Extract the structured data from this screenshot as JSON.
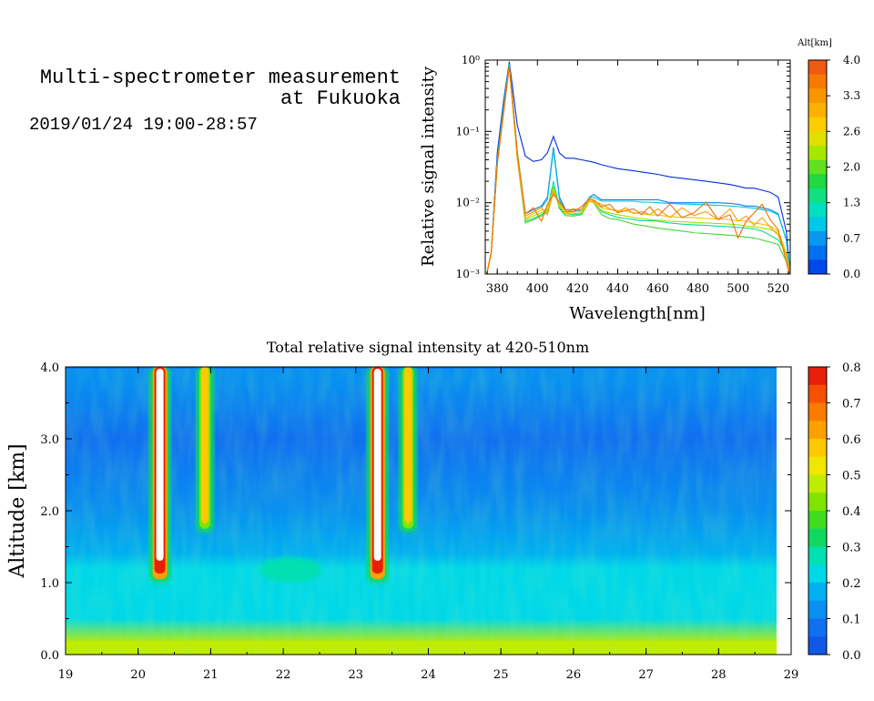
{
  "header": {
    "title_line1": "Multi-spectrometer measurement",
    "title_line2": "at Fukuoka",
    "date_range": "2019/01/24 19:00-28:57"
  },
  "chart_data": [
    {
      "type": "line",
      "ylabel": "Relative signal intensity",
      "xlabel": "Wavelength[nm]",
      "xlim": [
        374,
        526
      ],
      "ylim": [
        0.001,
        1
      ],
      "yscale": "log",
      "x_ticks": [
        380,
        400,
        420,
        440,
        460,
        480,
        500,
        520
      ],
      "y_ticks": [
        {
          "label": "10⁰",
          "value": 1
        },
        {
          "label": "10⁻¹",
          "value": 0.1
        },
        {
          "label": "10⁻²",
          "value": 0.01
        },
        {
          "label": "10⁻³",
          "value": 0.001
        }
      ],
      "colorbar": {
        "title": "Alt[km]",
        "ticks": [
          "4.0",
          "3.3",
          "2.6",
          "2.0",
          "1.3",
          "0.7",
          "0.0"
        ],
        "colors": [
          "#f05a10",
          "#f77a00",
          "#fa9600",
          "#ffb000",
          "#ffcc00",
          "#e0e000",
          "#a8e800",
          "#60e020",
          "#20d840",
          "#10e080",
          "#00e0c0",
          "#00c8e8",
          "#0898f0",
          "#0070f0",
          "#0048e8"
        ]
      },
      "x": [
        374,
        377,
        380,
        383,
        386,
        390,
        394,
        398,
        402,
        405,
        408,
        411,
        414,
        418,
        422,
        426,
        428,
        432,
        436,
        440,
        444,
        448,
        452,
        456,
        460,
        466,
        472,
        478,
        484,
        490,
        496,
        500,
        504,
        508,
        512,
        516,
        520,
        524,
        526
      ],
      "series": [
        {
          "color": "#0030e0",
          "values": [
            0.0008,
            0.002,
            0.05,
            0.25,
            0.95,
            0.12,
            0.045,
            0.038,
            0.04,
            0.05,
            0.085,
            0.05,
            0.042,
            0.042,
            0.04,
            0.038,
            0.037,
            0.034,
            0.032,
            0.03,
            0.029,
            0.028,
            0.027,
            0.026,
            0.025,
            0.023,
            0.022,
            0.021,
            0.02,
            0.019,
            0.018,
            0.017,
            0.016,
            0.016,
            0.015,
            0.014,
            0.012,
            0.004,
            0.001
          ]
        },
        {
          "color": "#0880f0",
          "values": [
            0.0008,
            0.002,
            0.04,
            0.22,
            0.9,
            0.05,
            0.007,
            0.008,
            0.009,
            0.012,
            0.06,
            0.012,
            0.008,
            0.008,
            0.008,
            0.012,
            0.013,
            0.011,
            0.011,
            0.011,
            0.011,
            0.011,
            0.011,
            0.011,
            0.011,
            0.01,
            0.01,
            0.01,
            0.01,
            0.01,
            0.0098,
            0.0095,
            0.009,
            0.009,
            0.0085,
            0.008,
            0.007,
            0.003,
            0.001
          ]
        },
        {
          "color": "#00c0e0",
          "values": [
            0.0008,
            0.002,
            0.04,
            0.2,
            0.88,
            0.05,
            0.0065,
            0.0075,
            0.0085,
            0.011,
            0.055,
            0.011,
            0.0075,
            0.0075,
            0.0078,
            0.012,
            0.012,
            0.0105,
            0.0105,
            0.0105,
            0.0105,
            0.0105,
            0.0102,
            0.0102,
            0.01,
            0.0098,
            0.0096,
            0.0095,
            0.0093,
            0.0092,
            0.009,
            0.0088,
            0.0086,
            0.0084,
            0.008,
            0.0076,
            0.0068,
            0.003,
            0.001
          ]
        },
        {
          "color": "#10d890",
          "values": [
            0.0008,
            0.002,
            0.035,
            0.18,
            0.85,
            0.04,
            0.0055,
            0.006,
            0.0068,
            0.008,
            0.02,
            0.0085,
            0.007,
            0.0068,
            0.007,
            0.011,
            0.0105,
            0.0075,
            0.0068,
            0.0062,
            0.006,
            0.0058,
            0.0056,
            0.0056,
            0.0055,
            0.0052,
            0.005,
            0.0049,
            0.0048,
            0.0047,
            0.0046,
            0.0045,
            0.0044,
            0.0043,
            0.004,
            0.0035,
            0.003,
            0.002,
            0.001
          ]
        },
        {
          "color": "#40d830",
          "values": [
            0.0008,
            0.002,
            0.035,
            0.17,
            0.83,
            0.04,
            0.0052,
            0.0058,
            0.0065,
            0.0075,
            0.017,
            0.0082,
            0.0066,
            0.0065,
            0.0068,
            0.0105,
            0.01,
            0.0068,
            0.006,
            0.0058,
            0.0054,
            0.005,
            0.0048,
            0.0046,
            0.0044,
            0.0042,
            0.004,
            0.0038,
            0.0037,
            0.0036,
            0.0035,
            0.0034,
            0.0033,
            0.0032,
            0.003,
            0.0028,
            0.0026,
            0.0015,
            0.0009
          ]
        },
        {
          "color": "#a0e000",
          "values": [
            0.0008,
            0.002,
            0.035,
            0.17,
            0.82,
            0.04,
            0.0058,
            0.0065,
            0.0072,
            0.008,
            0.016,
            0.009,
            0.007,
            0.007,
            0.0072,
            0.0105,
            0.01,
            0.0078,
            0.0072,
            0.0068,
            0.0065,
            0.0062,
            0.006,
            0.0058,
            0.0057,
            0.0055,
            0.0054,
            0.0053,
            0.0052,
            0.0051,
            0.005,
            0.0049,
            0.0047,
            0.0046,
            0.0044,
            0.0042,
            0.0038,
            0.002,
            0.001
          ]
        },
        {
          "color": "#ffc000",
          "values": [
            0.0008,
            0.002,
            0.035,
            0.17,
            0.82,
            0.04,
            0.006,
            0.007,
            0.0078,
            0.0082,
            0.015,
            0.0095,
            0.0072,
            0.0074,
            0.0076,
            0.0105,
            0.0102,
            0.0085,
            0.008,
            0.0078,
            0.0076,
            0.0072,
            0.007,
            0.0068,
            0.0067,
            0.0064,
            0.0062,
            0.0062,
            0.006,
            0.0059,
            0.0058,
            0.0056,
            0.0055,
            0.0052,
            0.005,
            0.0047,
            0.004,
            0.002,
            0.001
          ]
        },
        {
          "color": "#f7a000",
          "values": [
            0.0008,
            0.002,
            0.035,
            0.17,
            0.82,
            0.045,
            0.0065,
            0.0075,
            0.0085,
            0.0068,
            0.014,
            0.01,
            0.0078,
            0.0082,
            0.008,
            0.011,
            0.0105,
            0.0095,
            0.0082,
            0.0075,
            0.0085,
            0.007,
            0.0075,
            0.0068,
            0.0082,
            0.0062,
            0.0085,
            0.0066,
            0.0075,
            0.0058,
            0.0082,
            0.0055,
            0.0065,
            0.0048,
            0.0062,
            0.0045,
            0.0035,
            0.0018,
            0.0009
          ]
        },
        {
          "color": "#f07000",
          "values": [
            0.0008,
            0.002,
            0.035,
            0.17,
            0.82,
            0.05,
            0.007,
            0.0085,
            0.0055,
            0.0095,
            0.013,
            0.0102,
            0.008,
            0.0075,
            0.0088,
            0.0115,
            0.011,
            0.0088,
            0.0095,
            0.0072,
            0.0078,
            0.0082,
            0.0068,
            0.0088,
            0.0065,
            0.0095,
            0.0062,
            0.0072,
            0.0102,
            0.0058,
            0.0068,
            0.0032,
            0.0055,
            0.0072,
            0.0095,
            0.0058,
            0.0042,
            0.0015,
            0.0009
          ]
        }
      ]
    },
    {
      "type": "heatmap",
      "title": "Total relative signal intensity at 420-510nm",
      "ylabel": "Altitude [km]",
      "xlabel": "",
      "xlim": [
        19,
        29
      ],
      "ylim": [
        0.0,
        4.0
      ],
      "x_ticks": [
        "19",
        "20",
        "21",
        "22",
        "23",
        "24",
        "25",
        "26",
        "27",
        "28",
        "29"
      ],
      "y_ticks": [
        "0.0",
        "1.0",
        "2.0",
        "3.0",
        "4.0"
      ],
      "data_extent_x": [
        19,
        28.8
      ],
      "background_profile": [
        {
          "alt_km": 0.15,
          "value": 0.45
        },
        {
          "alt_km": 0.5,
          "value": 0.2
        },
        {
          "alt_km": 1.2,
          "value": 0.22
        },
        {
          "alt_km": 1.4,
          "value": 0.18
        },
        {
          "alt_km": 2.0,
          "value": 0.1
        },
        {
          "alt_km": 3.0,
          "value": 0.08
        },
        {
          "alt_km": 3.8,
          "value": 0.12
        }
      ],
      "features": [
        {
          "label": "cloud column",
          "time": 20.3,
          "alt_from": 1.0,
          "alt_to": 4.0,
          "value": 0.8
        },
        {
          "label": "cloud column",
          "time": 20.92,
          "alt_from": 1.7,
          "alt_to": 4.0,
          "value": 0.55
        },
        {
          "label": "cloud column",
          "time": 23.3,
          "alt_from": 1.0,
          "alt_to": 4.0,
          "value": 0.8
        },
        {
          "label": "cloud column",
          "time": 23.72,
          "alt_from": 1.7,
          "alt_to": 4.0,
          "value": 0.55
        },
        {
          "label": "aerosol layer",
          "time": 22.1,
          "alt_from": 1.05,
          "alt_to": 1.3,
          "value": 0.27
        }
      ],
      "colorbar": {
        "ticks": [
          "0.8",
          "0.7",
          "0.6",
          "0.5",
          "0.4",
          "0.3",
          "0.2",
          "0.1",
          "0.0"
        ],
        "colors": [
          "#e8200a",
          "#f55000",
          "#fb7a00",
          "#ffa000",
          "#ffc800",
          "#f0e600",
          "#c0ec00",
          "#80e400",
          "#40dc20",
          "#10d860",
          "#00e0b0",
          "#00d8e8",
          "#00b0f0",
          "#0890f0",
          "#1070f0",
          "#1058e8"
        ]
      }
    }
  ]
}
